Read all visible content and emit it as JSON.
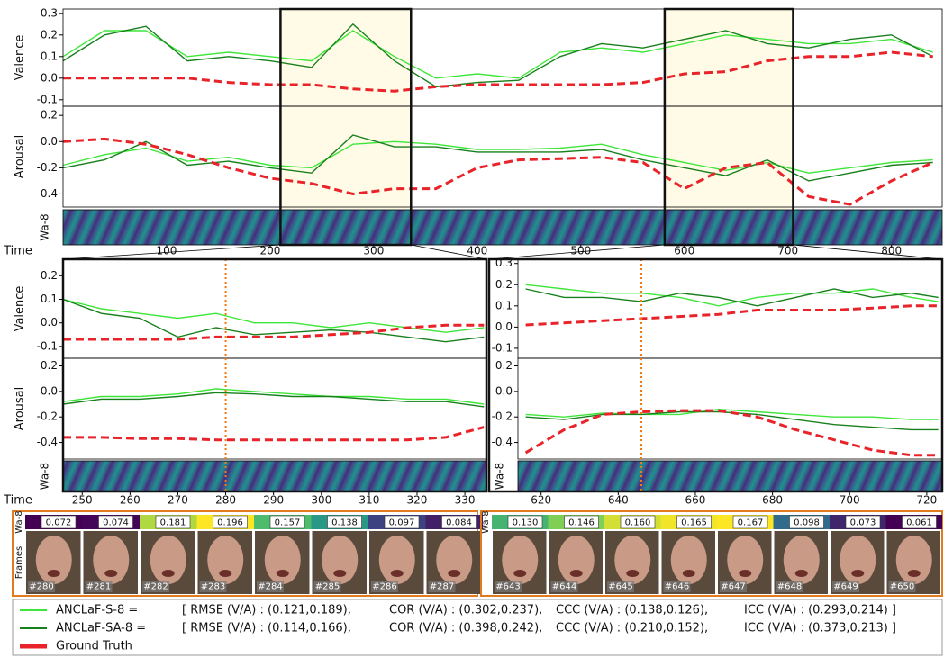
{
  "overview": {
    "x_label": "Time",
    "x": [
      0,
      40,
      80,
      120,
      160,
      200,
      240,
      280,
      320,
      360,
      400,
      440,
      480,
      520,
      560,
      600,
      640,
      680,
      720,
      760,
      800,
      840
    ],
    "xlim": [
      0,
      849
    ],
    "xticks": [
      100,
      200,
      300,
      400,
      500,
      600,
      700,
      800
    ],
    "highlights": [
      [
        210,
        336
      ],
      [
        581,
        705
      ]
    ],
    "heatmap_label": "Wa-8",
    "valence": {
      "label": "Valence",
      "ylim": [
        -0.13,
        0.32
      ],
      "yticks": [
        -0.1,
        {
          "value": 0,
          "label": "0.0"
        },
        0.1,
        0.2,
        0.3
      ],
      "series": [
        [
          0.1,
          0.22,
          0.22,
          0.1,
          0.12,
          0.1,
          0.08,
          0.22,
          0.1,
          0.0,
          0.02,
          0.0,
          0.12,
          0.14,
          0.12,
          0.16,
          0.2,
          0.18,
          0.16,
          0.16,
          0.18,
          0.12
        ],
        [
          0.08,
          0.2,
          0.24,
          0.08,
          0.1,
          0.08,
          0.05,
          0.25,
          0.08,
          -0.04,
          -0.02,
          -0.01,
          0.1,
          0.16,
          0.14,
          0.18,
          0.22,
          0.16,
          0.14,
          0.18,
          0.2,
          0.1
        ],
        [
          0.0,
          0.0,
          0.0,
          0.0,
          -0.02,
          -0.03,
          -0.03,
          -0.05,
          -0.06,
          -0.04,
          -0.03,
          -0.03,
          -0.03,
          -0.03,
          -0.02,
          0.02,
          0.03,
          0.08,
          0.1,
          0.1,
          0.12,
          0.1
        ]
      ]
    },
    "arousal": {
      "label": "Arousal",
      "ylim": [
        -0.5,
        0.27
      ],
      "yticks": [
        -0.4,
        -0.2,
        {
          "value": 0,
          "label": "0.0"
        },
        0.2
      ],
      "series": [
        [
          -0.18,
          -0.1,
          -0.05,
          -0.15,
          -0.12,
          -0.18,
          -0.2,
          -0.02,
          0.0,
          -0.02,
          -0.06,
          -0.06,
          -0.05,
          -0.02,
          -0.1,
          -0.16,
          -0.22,
          -0.16,
          -0.24,
          -0.2,
          -0.16,
          -0.14
        ],
        [
          -0.2,
          -0.14,
          0.0,
          -0.18,
          -0.15,
          -0.2,
          -0.24,
          0.05,
          -0.04,
          -0.04,
          -0.08,
          -0.08,
          -0.08,
          -0.06,
          -0.14,
          -0.2,
          -0.26,
          -0.14,
          -0.3,
          -0.24,
          -0.18,
          -0.16
        ],
        [
          0.0,
          0.02,
          -0.02,
          -0.1,
          -0.2,
          -0.28,
          -0.32,
          -0.4,
          -0.36,
          -0.36,
          -0.2,
          -0.14,
          -0.13,
          -0.12,
          -0.16,
          -0.36,
          -0.2,
          -0.16,
          -0.42,
          -0.48,
          -0.3,
          -0.16
        ]
      ]
    }
  },
  "zooms": [
    {
      "x_label": "Time",
      "x": [
        246,
        254,
        262,
        270,
        278,
        286,
        294,
        302,
        310,
        318,
        326,
        334
      ],
      "xlim": [
        246,
        334.5
      ],
      "xticks": [
        250,
        260,
        270,
        280,
        290,
        300,
        310,
        320,
        330
      ],
      "marker": 280,
      "heatmap_label": "Wa-8",
      "valence": {
        "label": "Valence",
        "ylim": [
          -0.15,
          0.27
        ],
        "yticks": [
          -0.1,
          {
            "value": 0,
            "label": "0.0"
          },
          0.1,
          0.2
        ],
        "series": [
          [
            0.1,
            0.06,
            0.04,
            0.02,
            0.04,
            0.0,
            0.0,
            -0.02,
            0.0,
            -0.02,
            -0.04,
            -0.02
          ],
          [
            0.1,
            0.04,
            0.02,
            -0.06,
            -0.02,
            -0.05,
            -0.04,
            -0.03,
            -0.04,
            -0.06,
            -0.08,
            -0.06
          ],
          [
            -0.07,
            -0.07,
            -0.07,
            -0.07,
            -0.06,
            -0.06,
            -0.06,
            -0.05,
            -0.04,
            -0.02,
            -0.01,
            -0.01
          ]
        ]
      },
      "arousal": {
        "label": "Arousal",
        "ylim": [
          -0.53,
          0.26
        ],
        "yticks": [
          -0.4,
          -0.2,
          {
            "value": 0,
            "label": "0.0"
          },
          0.2
        ],
        "series": [
          [
            -0.08,
            -0.04,
            -0.04,
            -0.02,
            0.02,
            0.0,
            -0.02,
            -0.04,
            -0.04,
            -0.06,
            -0.06,
            -0.1
          ],
          [
            -0.1,
            -0.06,
            -0.06,
            -0.04,
            -0.01,
            -0.02,
            -0.04,
            -0.04,
            -0.06,
            -0.08,
            -0.08,
            -0.12
          ],
          [
            -0.36,
            -0.36,
            -0.37,
            -0.37,
            -0.38,
            -0.38,
            -0.38,
            -0.38,
            -0.38,
            -0.38,
            -0.36,
            -0.28
          ]
        ]
      }
    },
    {
      "x": [
        616,
        626,
        636,
        646,
        656,
        666,
        676,
        686,
        696,
        706,
        716,
        723
      ],
      "xlim": [
        614,
        724
      ],
      "xticks": [
        620,
        640,
        660,
        680,
        700,
        720
      ],
      "marker": 646,
      "heatmap_label": "Wa-8",
      "valence": {
        "ylim": [
          -0.147,
          0.32
        ],
        "yticks": [
          -0.1,
          {
            "value": 0,
            "label": "0.0"
          },
          0.1,
          0.2,
          0.3
        ],
        "series": [
          [
            0.2,
            0.18,
            0.16,
            0.16,
            0.14,
            0.1,
            0.14,
            0.16,
            0.16,
            0.18,
            0.14,
            0.12
          ],
          [
            0.18,
            0.14,
            0.14,
            0.12,
            0.16,
            0.14,
            0.1,
            0.14,
            0.18,
            0.14,
            0.16,
            0.14
          ],
          [
            0.01,
            0.02,
            0.03,
            0.04,
            0.05,
            0.06,
            0.08,
            0.08,
            0.08,
            0.09,
            0.1,
            0.1
          ]
        ]
      },
      "arousal": {
        "ylim": [
          -0.53,
          0.26
        ],
        "yticks": [
          -0.4,
          -0.2,
          {
            "value": 0,
            "label": "0.0"
          },
          0.2
        ],
        "series": [
          [
            -0.18,
            -0.2,
            -0.17,
            -0.18,
            -0.18,
            -0.14,
            -0.16,
            -0.18,
            -0.2,
            -0.2,
            -0.22,
            -0.22
          ],
          [
            -0.2,
            -0.22,
            -0.18,
            -0.18,
            -0.16,
            -0.16,
            -0.18,
            -0.22,
            -0.26,
            -0.28,
            -0.3,
            -0.3
          ],
          [
            -0.48,
            -0.3,
            -0.18,
            -0.16,
            -0.15,
            -0.15,
            -0.2,
            -0.3,
            -0.38,
            -0.46,
            -0.5,
            -0.5
          ]
        ]
      }
    }
  ],
  "frame_strips": [
    {
      "weight_label": "Wa-8",
      "frames_label": "Frames",
      "values": [
        0.072,
        0.074,
        0.181,
        0.196,
        0.157,
        0.138,
        0.097,
        0.084
      ],
      "frames": [
        "#280",
        "#281",
        "#282",
        "#283",
        "#284",
        "#285",
        "#286",
        "#287"
      ]
    },
    {
      "weight_label": "Wa-8",
      "values": [
        0.13,
        0.146,
        0.16,
        0.165,
        0.167,
        0.098,
        0.073,
        0.061
      ],
      "value_labels": [
        "0.130",
        "0.146",
        "0.160",
        "0.165",
        "0.167",
        "0.098",
        "0.073",
        "0.061"
      ],
      "frames": [
        "#643",
        "#644",
        "#645",
        "#646",
        "#647",
        "#648",
        "#649",
        "#650"
      ]
    }
  ],
  "legend": {
    "entries": [
      {
        "name": "ANCLaF-S-8 =",
        "color": "#3fe63a",
        "metrics": [
          "[ RMSE (V/A) : (0.121,0.189),",
          "COR (V/A) : (0.302,0.237),",
          "CCC (V/A) : (0.138,0.126),",
          "ICC (V/A) : (0.293,0.214) ]"
        ]
      },
      {
        "name": "ANCLaF-SA-8 =",
        "color": "#17801c",
        "metrics": [
          "[ RMSE (V/A) : (0.114,0.166),",
          "COR (V/A) : (0.398,0.242),",
          "CCC (V/A) : (0.210,0.152),",
          "ICC (V/A) : (0.373,0.213) ]"
        ]
      },
      {
        "name": "Ground Truth",
        "color": "#e8232a",
        "dashed": true
      }
    ]
  }
}
